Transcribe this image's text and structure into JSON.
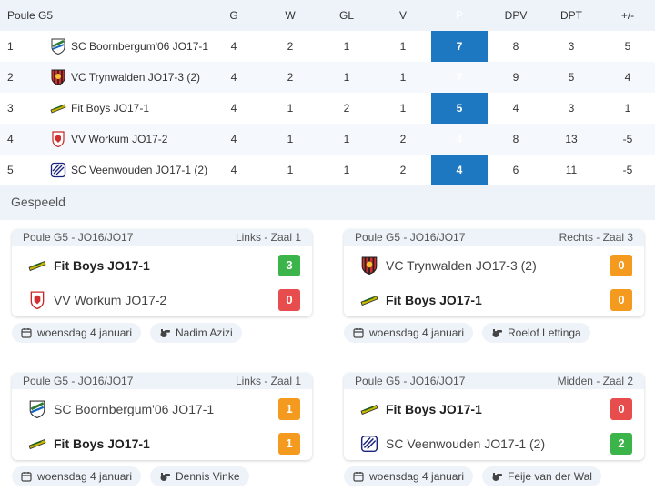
{
  "standings": {
    "poule": "Poule G5",
    "headers": {
      "g": "G",
      "w": "W",
      "gl": "GL",
      "v": "V",
      "p": "P",
      "dpv": "DPV",
      "dpt": "DPT",
      "diff": "+/-"
    },
    "rows": [
      {
        "pos": "1",
        "team": "SC Boornbergum'06 JO17-1",
        "g": "4",
        "w": "2",
        "gl": "1",
        "v": "1",
        "p": "7",
        "dpv": "8",
        "dpt": "3",
        "diff": "5",
        "logo": "boornbergum-shield-icon"
      },
      {
        "pos": "2",
        "team": "VC Trynwalden JO17-3 (2)",
        "g": "4",
        "w": "2",
        "gl": "1",
        "v": "1",
        "p": "7",
        "dpv": "9",
        "dpt": "5",
        "diff": "4",
        "logo": "trynwalden-shield-icon"
      },
      {
        "pos": "3",
        "team": "Fit Boys JO17-1",
        "g": "4",
        "w": "1",
        "gl": "2",
        "v": "1",
        "p": "5",
        "dpv": "4",
        "dpt": "3",
        "diff": "1",
        "logo": "fitboys-logo-icon"
      },
      {
        "pos": "4",
        "team": "VV Workum JO17-2",
        "g": "4",
        "w": "1",
        "gl": "1",
        "v": "2",
        "p": "4",
        "dpv": "8",
        "dpt": "13",
        "diff": "-5",
        "logo": "workum-shield-icon"
      },
      {
        "pos": "5",
        "team": "SC Veenwouden JO17-1 (2)",
        "g": "4",
        "w": "1",
        "gl": "1",
        "v": "2",
        "p": "4",
        "dpv": "6",
        "dpt": "11",
        "diff": "-5",
        "logo": "veenwouden-badge-icon"
      }
    ]
  },
  "section_title": "Gespeeld",
  "matches": [
    {
      "poule": "Poule G5 - JO16/JO17",
      "venue": "Links - Zaal 1",
      "home": {
        "name": "Fit Boys JO17-1",
        "score": "3",
        "winner": true,
        "logo": "fitboys-logo-icon",
        "color": "#3bb54a"
      },
      "away": {
        "name": "VV Workum JO17-2",
        "score": "0",
        "winner": false,
        "logo": "workum-shield-icon",
        "color": "#e84d4d"
      },
      "date": "woensdag 4 januari",
      "referee": "Nadim Azizi"
    },
    {
      "poule": "Poule G5 - JO16/JO17",
      "venue": "Rechts - Zaal 3",
      "home": {
        "name": "VC Trynwalden JO17-3 (2)",
        "score": "0",
        "winner": false,
        "logo": "trynwalden-shield-icon",
        "color": "#f39a1f"
      },
      "away": {
        "name": "Fit Boys JO17-1",
        "score": "0",
        "winner": true,
        "logo": "fitboys-logo-icon",
        "color": "#f39a1f"
      },
      "date": "woensdag 4 januari",
      "referee": "Roelof Lettinga"
    },
    {
      "poule": "Poule G5 - JO16/JO17",
      "venue": "Links - Zaal 1",
      "home": {
        "name": "SC Boornbergum'06 JO17-1",
        "score": "1",
        "winner": false,
        "logo": "boornbergum-shield-icon",
        "color": "#f39a1f"
      },
      "away": {
        "name": "Fit Boys JO17-1",
        "score": "1",
        "winner": true,
        "logo": "fitboys-logo-icon",
        "color": "#f39a1f"
      },
      "date": "woensdag 4 januari",
      "referee": "Dennis Vinke"
    },
    {
      "poule": "Poule G5 - JO16/JO17",
      "venue": "Midden - Zaal 2",
      "home": {
        "name": "Fit Boys JO17-1",
        "score": "0",
        "winner": true,
        "logo": "fitboys-logo-icon",
        "color": "#e84d4d"
      },
      "away": {
        "name": "SC Veenwouden JO17-1 (2)",
        "score": "2",
        "winner": false,
        "logo": "veenwouden-badge-icon",
        "color": "#3bb54a"
      },
      "date": "woensdag 4 januari",
      "referee": "Feije van der Wal"
    }
  ],
  "icons": {
    "date": "calendar-icon",
    "referee": "whistle-icon"
  },
  "colors": {
    "accent": "#1d78c1",
    "win": "#3bb54a",
    "draw": "#f39a1f",
    "loss": "#e84d4d"
  }
}
